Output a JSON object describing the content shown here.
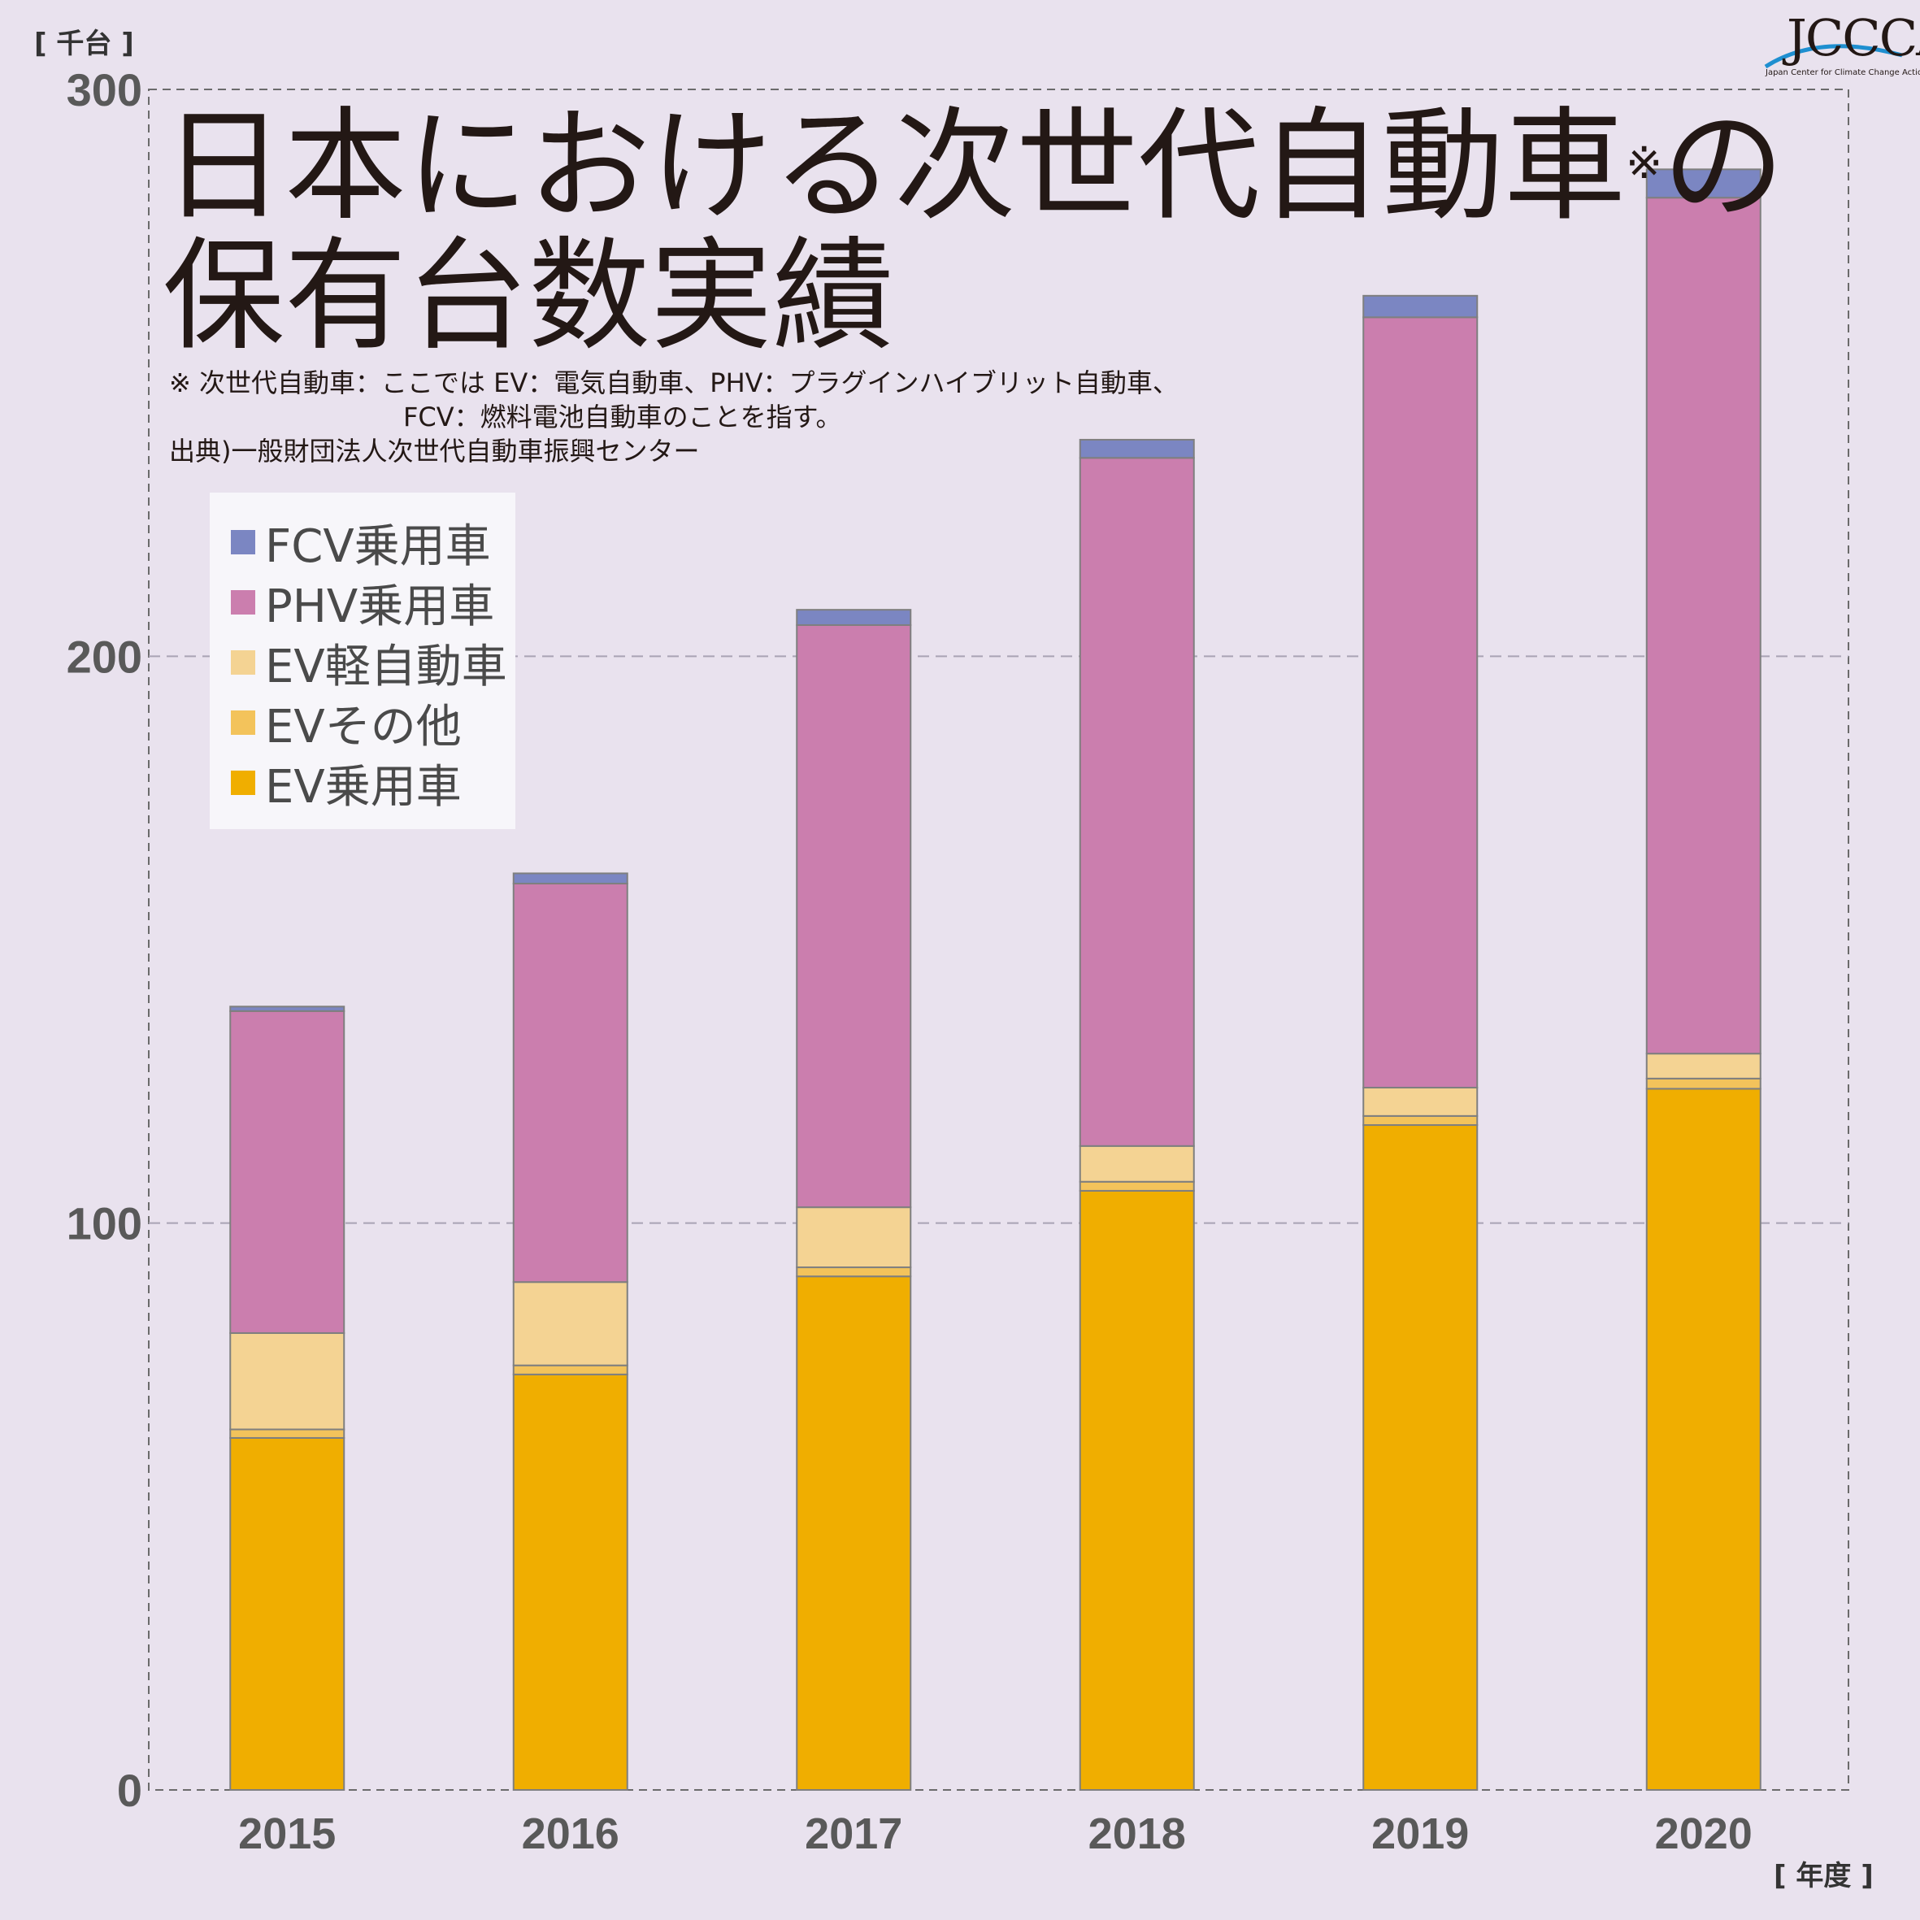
{
  "header": {
    "title_line1": "日本における次世代自動車",
    "title_sup": "※",
    "title_line1_end": "の",
    "title_line2": "保有台数実績",
    "note_line1": "※ 次世代自動車：ここでは EV：電気自動車、PHV：プラグインハイブリット自動車、",
    "note_line2": "FCV：燃料電池自動車のことを指す。",
    "source": "出典)一般財団法人次世代自動車振興センター",
    "y_unit": "[ 千台 ]",
    "x_unit": "[ 年度 ]"
  },
  "logo": {
    "text": "JCCCA",
    "subtitle": "Japan Center for Climate Change Actions"
  },
  "legend": [
    {
      "label": "FCV乗用車",
      "color": "#7b86c2"
    },
    {
      "label": "PHV乗用車",
      "color": "#cb7eae"
    },
    {
      "label": "EV軽自動車",
      "color": "#f4d393"
    },
    {
      "label": "EVその他",
      "color": "#f3c35b"
    },
    {
      "label": "EV乗用車",
      "color": "#f0ae00"
    }
  ],
  "chart_data": {
    "type": "bar",
    "stacked": true,
    "categories": [
      "2015",
      "2016",
      "2017",
      "2018",
      "2019",
      "2020"
    ],
    "ylim": [
      0,
      300
    ],
    "yticks": [
      "0",
      "100",
      "200",
      "300"
    ],
    "grid": true,
    "legend_position": "top-left",
    "series": [
      {
        "name": "EV乗用車",
        "color": "#f0ae00",
        "values": [
          62.1,
          73.3,
          90.6,
          105.7,
          117.3,
          123.7
        ]
      },
      {
        "name": "EVその他",
        "color": "#f3c35b",
        "values": [
          1.5,
          1.6,
          1.6,
          1.6,
          1.6,
          1.8
        ]
      },
      {
        "name": "EV軽自動車",
        "color": "#f4d393",
        "values": [
          17.0,
          14.7,
          10.6,
          6.3,
          5.0,
          4.4
        ]
      },
      {
        "name": "PHV乗用車",
        "color": "#cb7eae",
        "values": [
          56.8,
          70.3,
          102.7,
          121.4,
          135.9,
          151.0
        ]
      },
      {
        "name": "FCV乗用車",
        "color": "#7b86c2",
        "values": [
          0.8,
          1.8,
          2.7,
          3.2,
          3.8,
          5.0
        ]
      }
    ]
  }
}
